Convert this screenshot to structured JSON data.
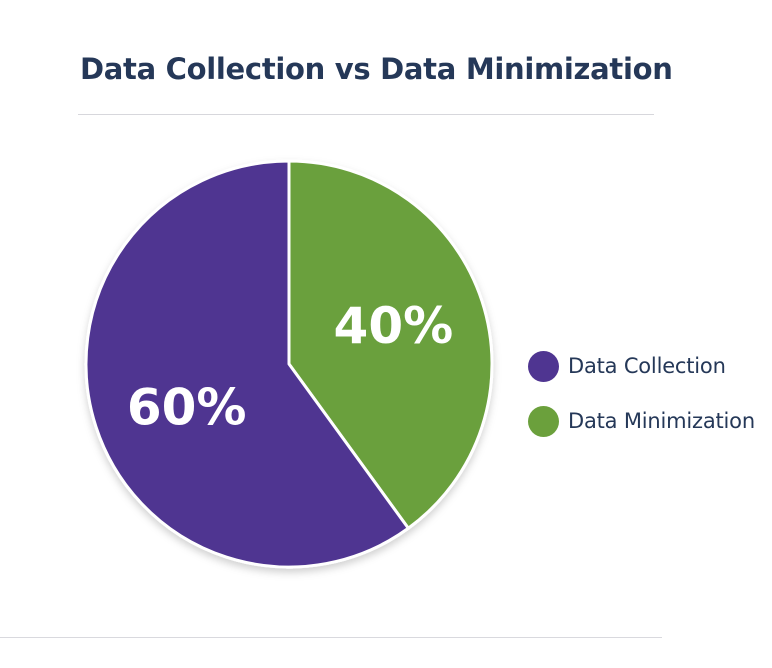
{
  "chart_data": {
    "type": "pie",
    "title": "Data Collection vs Data Minimization",
    "categories": [
      "Data Collection",
      "Data Minimization"
    ],
    "values": [
      60,
      40
    ],
    "labels": [
      "60%",
      "40%"
    ],
    "colors": [
      "#4f3591",
      "#6ba03c"
    ],
    "legend": "right"
  }
}
